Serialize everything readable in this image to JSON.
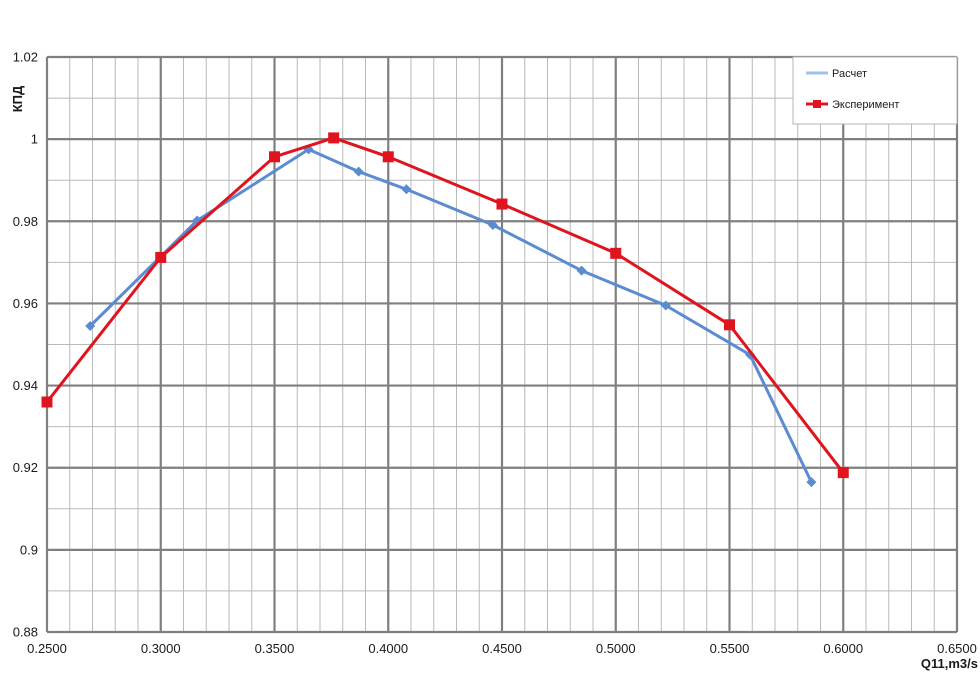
{
  "chart_data": {
    "type": "line",
    "title": "",
    "xlabel": "Q11,m3/s",
    "ylabel": "КПД",
    "xlim": [
      0.25,
      0.65
    ],
    "ylim": [
      0.88,
      1.02
    ],
    "x_major_ticks": [
      "0.2500",
      "0.3000",
      "0.3500",
      "0.4000",
      "0.4500",
      "0.5000",
      "0.5500",
      "0.6000",
      "0.6500"
    ],
    "y_major_ticks": [
      "0.88",
      "0.9",
      "0.92",
      "0.94",
      "0.96",
      "0.98",
      "1",
      "1.02"
    ],
    "grid": true,
    "legend_position": "top-right",
    "series": [
      {
        "name": "Расчет",
        "color": "#5b8bd0",
        "legend_color": "#9fc3e8",
        "marker": "diamond",
        "x": [
          0.269,
          0.316,
          0.365,
          0.387,
          0.408,
          0.446,
          0.485,
          0.522,
          0.559,
          0.586
        ],
        "y": [
          0.9545,
          0.9802,
          0.9975,
          0.9921,
          0.9878,
          0.9791,
          0.968,
          0.9595,
          0.9475,
          0.9165
        ]
      },
      {
        "name": "Эксперимент",
        "color": "#e0141e",
        "legend_color": "#e0141e",
        "marker": "square",
        "x": [
          0.25,
          0.3,
          0.35,
          0.376,
          0.4,
          0.45,
          0.5,
          0.55,
          0.6
        ],
        "y": [
          0.936,
          0.9712,
          0.9957,
          1.0003,
          0.9957,
          0.9842,
          0.9722,
          0.9548,
          0.9188
        ]
      }
    ]
  }
}
